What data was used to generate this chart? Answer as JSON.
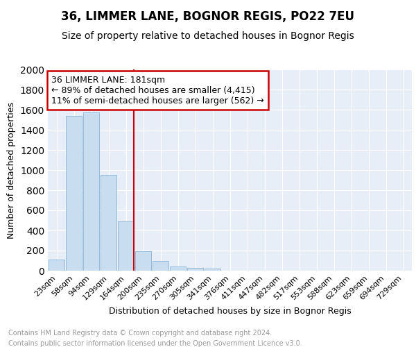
{
  "title1": "36, LIMMER LANE, BOGNOR REGIS, PO22 7EU",
  "title2": "Size of property relative to detached houses in Bognor Regis",
  "xlabel": "Distribution of detached houses by size in Bognor Regis",
  "ylabel": "Number of detached properties",
  "categories": [
    "23sqm",
    "58sqm",
    "94sqm",
    "129sqm",
    "164sqm",
    "200sqm",
    "235sqm",
    "270sqm",
    "305sqm",
    "341sqm",
    "376sqm",
    "411sqm",
    "447sqm",
    "482sqm",
    "517sqm",
    "553sqm",
    "588sqm",
    "623sqm",
    "659sqm",
    "694sqm",
    "729sqm"
  ],
  "values": [
    110,
    1540,
    1570,
    950,
    490,
    190,
    95,
    40,
    30,
    20,
    0,
    0,
    0,
    0,
    0,
    0,
    0,
    0,
    0,
    0,
    0
  ],
  "bar_color": "#c9ddf0",
  "bar_edge_color": "#8ab4d8",
  "ref_line_color": "#cc0000",
  "ylim": [
    0,
    2000
  ],
  "yticks": [
    0,
    200,
    400,
    600,
    800,
    1000,
    1200,
    1400,
    1600,
    1800,
    2000
  ],
  "annotation_title": "36 LIMMER LANE: 181sqm",
  "annotation_line1": "← 89% of detached houses are smaller (4,415)",
  "annotation_line2": "11% of semi-detached houses are larger (562) →",
  "annotation_box_color": "#cc0000",
  "footer_line1": "Contains HM Land Registry data © Crown copyright and database right 2024.",
  "footer_line2": "Contains public sector information licensed under the Open Government Licence v3.0.",
  "fig_bg_color": "#ffffff",
  "plot_bg_color": "#e8eef8",
  "grid_color": "#ffffff",
  "title1_fontsize": 12,
  "title2_fontsize": 10,
  "xlabel_fontsize": 9,
  "ylabel_fontsize": 9,
  "tick_fontsize": 8,
  "footer_fontsize": 7,
  "ann_fontsize": 9
}
